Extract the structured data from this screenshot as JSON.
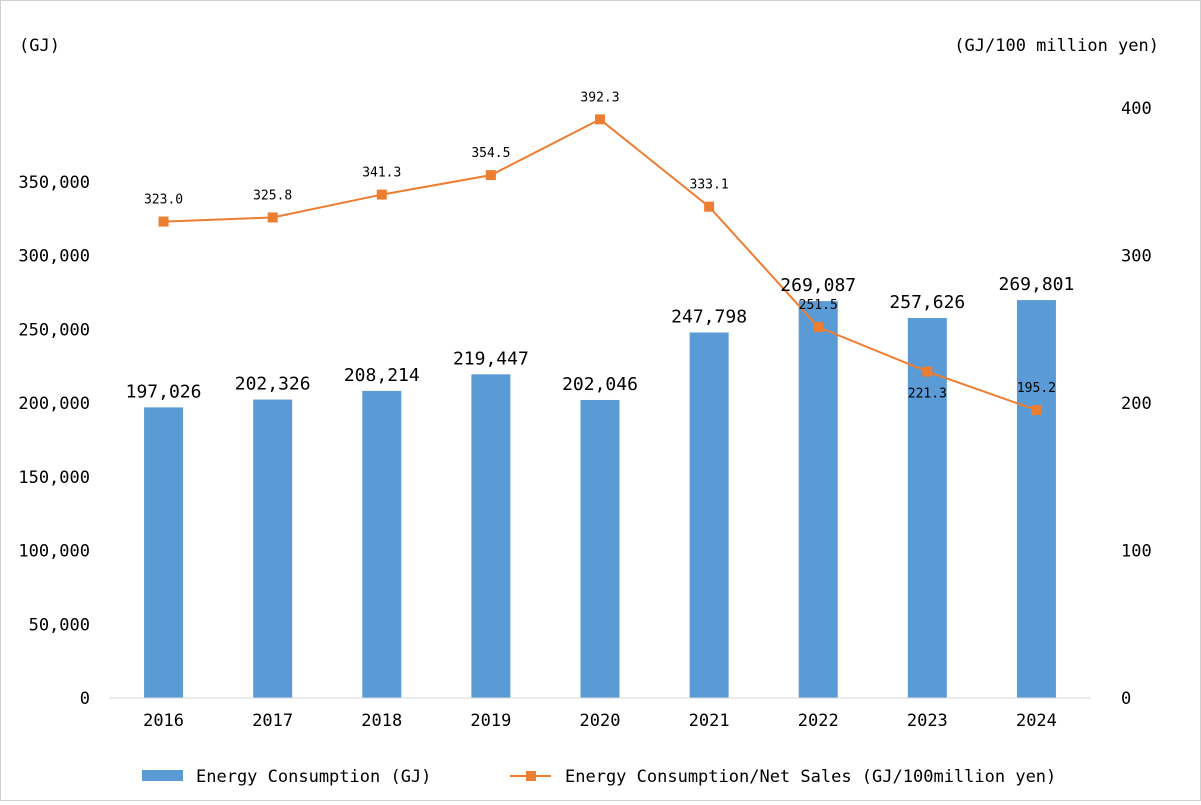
{
  "chart_data": {
    "type": "bar",
    "categories": [
      "2016",
      "2017",
      "2018",
      "2019",
      "2020",
      "2021",
      "2022",
      "2023",
      "2024"
    ],
    "left_axis": {
      "unit_label": "(GJ)",
      "ylim": [
        0,
        400000
      ],
      "tick_values": [
        0,
        50000,
        100000,
        150000,
        200000,
        250000,
        300000,
        350000
      ],
      "tick_labels": [
        "0",
        "50,000",
        "100,000",
        "150,000",
        "200,000",
        "250,000",
        "300,000",
        "350,000"
      ]
    },
    "right_axis": {
      "unit_label": "(GJ/100 million yen)",
      "ylim": [
        0,
        400
      ],
      "tick_values": [
        0,
        100,
        200,
        300,
        400
      ],
      "tick_labels": [
        "0",
        "100",
        "200",
        "300",
        "400"
      ]
    },
    "series": [
      {
        "name": "Energy Consumption (GJ)",
        "type": "bar",
        "axis": "left",
        "color": "#5b9bd5",
        "values": [
          197026,
          202326,
          208214,
          219447,
          202046,
          247798,
          269087,
          257626,
          269801
        ],
        "labels": [
          "197,026",
          "202,326",
          "208,214",
          "219,447",
          "202,046",
          "247,798",
          "269,087",
          "257,626",
          "269,801"
        ]
      },
      {
        "name": "Energy Consumption/Net Sales (GJ/100million yen)",
        "type": "line",
        "axis": "right",
        "color": "#ed7d31",
        "values": [
          323.0,
          325.8,
          341.3,
          354.5,
          392.3,
          333.1,
          251.5,
          221.3,
          195.2
        ],
        "labels": [
          "323.0",
          "325.8",
          "341.3",
          "354.5",
          "392.3",
          "333.1",
          "251.5",
          "221.3",
          "195.2"
        ]
      }
    ],
    "grid": false,
    "legend_position": "bottom"
  }
}
